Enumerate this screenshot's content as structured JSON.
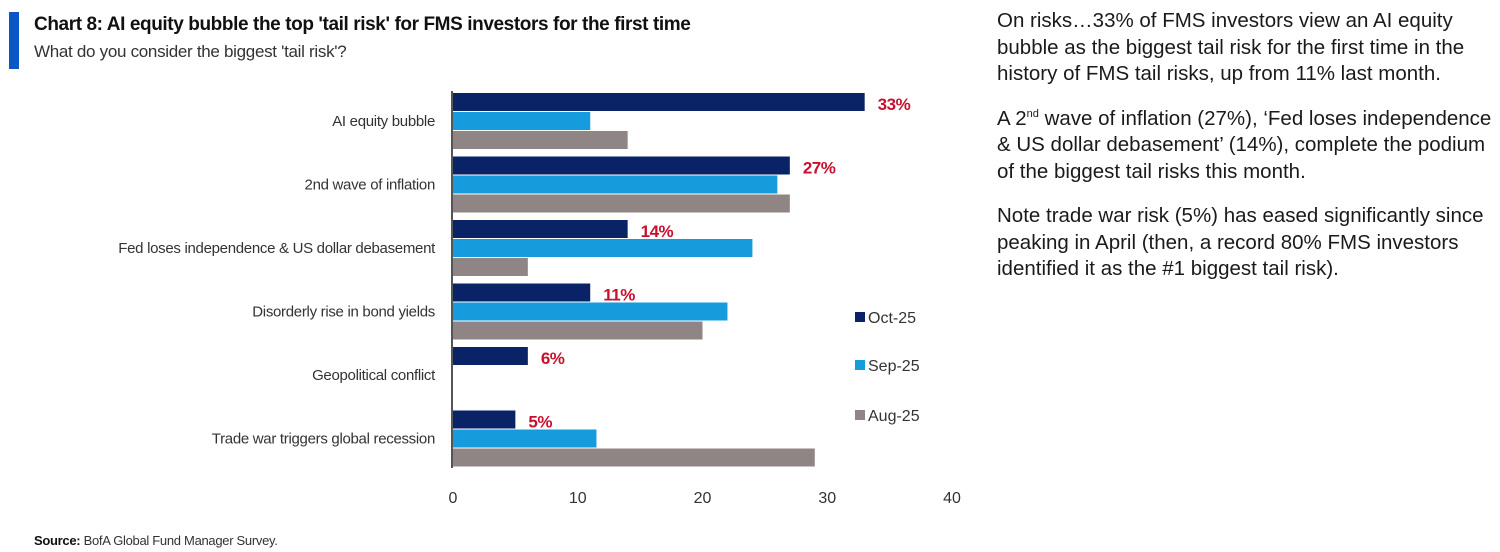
{
  "header": {
    "title": "Chart 8: AI equity bubble the top 'tail risk' for FMS investors for the first time",
    "subtitle": "What do you consider the biggest 'tail risk'?"
  },
  "chart_data": {
    "type": "bar",
    "orientation": "horizontal",
    "title": "Chart 8: AI equity bubble the top 'tail risk' for FMS investors for the first time",
    "subtitle": "What do you consider the biggest 'tail risk'?",
    "xlabel": "",
    "ylabel": "",
    "xlim": [
      0,
      40
    ],
    "xticks": [
      0,
      10,
      20,
      30,
      40
    ],
    "grid": false,
    "legend_position": "right",
    "categories": [
      "AI equity bubble",
      "2nd wave of inflation",
      "Fed loses independence & US dollar debasement",
      "Disorderly rise in bond yields",
      "Geopolitical conflict",
      "Trade war triggers global recession"
    ],
    "series": [
      {
        "name": "Oct-25",
        "color": "#0a2266",
        "values": [
          33,
          27,
          14,
          11,
          6,
          5
        ]
      },
      {
        "name": "Sep-25",
        "color": "#169bdc",
        "values": [
          11,
          26,
          24,
          22,
          null,
          11.5
        ]
      },
      {
        "name": "Aug-25",
        "color": "#8f8584",
        "values": [
          14,
          27,
          6,
          20,
          null,
          29
        ]
      }
    ],
    "data_labels": [
      "33%",
      "27%",
      "14%",
      "11%",
      "6%",
      "5%"
    ],
    "data_label_color": "#c8102e"
  },
  "source": {
    "label": "Source:",
    "text": " BofA Global Fund Manager Survey."
  },
  "commentary": {
    "p1": "On risks…33% of FMS investors view an AI equity bubble as the biggest tail risk for the first time in the history of FMS tail risks, up from 11% last month.",
    "p2_pre": "A 2",
    "p2_sup": "nd",
    "p2_post": " wave of inflation (27%), ‘Fed loses independence & US dollar debasement’ (14%), complete the podium of the biggest tail risks this month.",
    "p3": "Note trade war risk (5%) has eased significantly since peaking in April (then, a record 80% FMS investors identified it as the #1 biggest tail risk)."
  }
}
